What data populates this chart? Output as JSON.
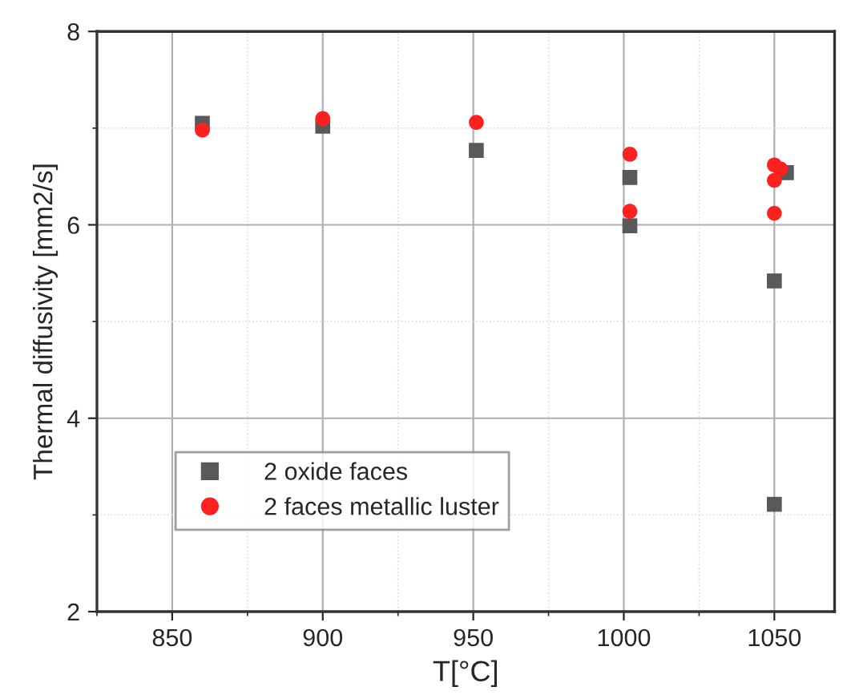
{
  "chart_data": {
    "type": "scatter",
    "xlabel": "T[°C]",
    "ylabel": "Thermal diffusivity [mm2/s]",
    "xlim": [
      825,
      1070
    ],
    "xticks": [
      850,
      900,
      950,
      1000,
      1050
    ],
    "ylim": [
      2,
      8
    ],
    "yticks": [
      2,
      4,
      6,
      8
    ],
    "grid": true,
    "legend": "bottom left",
    "series": [
      {
        "name": "2 oxide faces",
        "color": "#595959",
        "marker": "square",
        "x": [
          860,
          900,
          951,
          1002,
          1002,
          1050,
          1054,
          1050,
          1050
        ],
        "values": [
          7.05,
          7.02,
          6.77,
          6.49,
          5.99,
          null,
          6.54,
          5.42,
          3.11
        ]
      },
      {
        "name": "2 faces metallic luster",
        "color": "#ff2020",
        "marker": "circle",
        "x": [
          860,
          900,
          951,
          1002,
          1002,
          1050,
          1052,
          1050,
          1050
        ],
        "values": [
          6.98,
          7.1,
          7.06,
          6.73,
          6.14,
          6.62,
          6.58,
          6.46,
          6.12
        ]
      }
    ]
  }
}
